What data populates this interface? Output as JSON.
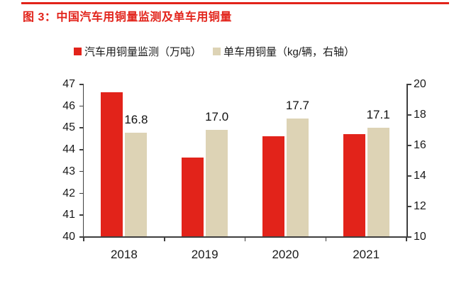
{
  "figure": {
    "title": "图 3：中国汽车用铜量监测及单车用铜量",
    "accent_color": "#e2231a"
  },
  "legend": {
    "items": [
      {
        "label": "汽车用铜量监测（万吨）",
        "color": "#e2231a"
      },
      {
        "label": "单车用铜量（kg/辆，右轴）",
        "color": "#ddd3b5"
      }
    ]
  },
  "chart_data": {
    "type": "bar",
    "title": "中国汽车用铜量监测及单车用铜量",
    "categories": [
      "2018",
      "2019",
      "2020",
      "2021"
    ],
    "series": [
      {
        "name": "汽车用铜量监测（万吨）",
        "axis": "left",
        "color": "#e2231a",
        "values": [
          46.6,
          43.6,
          44.6,
          44.7
        ],
        "labels": null
      },
      {
        "name": "单车用铜量（kg/辆，右轴）",
        "axis": "right",
        "color": "#ddd3b5",
        "values": [
          16.8,
          17.0,
          17.7,
          17.1
        ],
        "labels": [
          "16.8",
          "17.0",
          "17.7",
          "17.1"
        ]
      }
    ],
    "left_axis": {
      "min": 40,
      "max": 47,
      "tick_step": 1,
      "ticks": [
        40,
        41,
        42,
        43,
        44,
        45,
        46,
        47
      ]
    },
    "right_axis": {
      "min": 10,
      "max": 20,
      "tick_step": 2,
      "ticks": [
        10,
        12,
        14,
        16,
        18,
        20
      ]
    },
    "grid": false,
    "legend_position": "top",
    "text_color": "#1a1a1a",
    "axis_color": "#3f3f3f"
  }
}
